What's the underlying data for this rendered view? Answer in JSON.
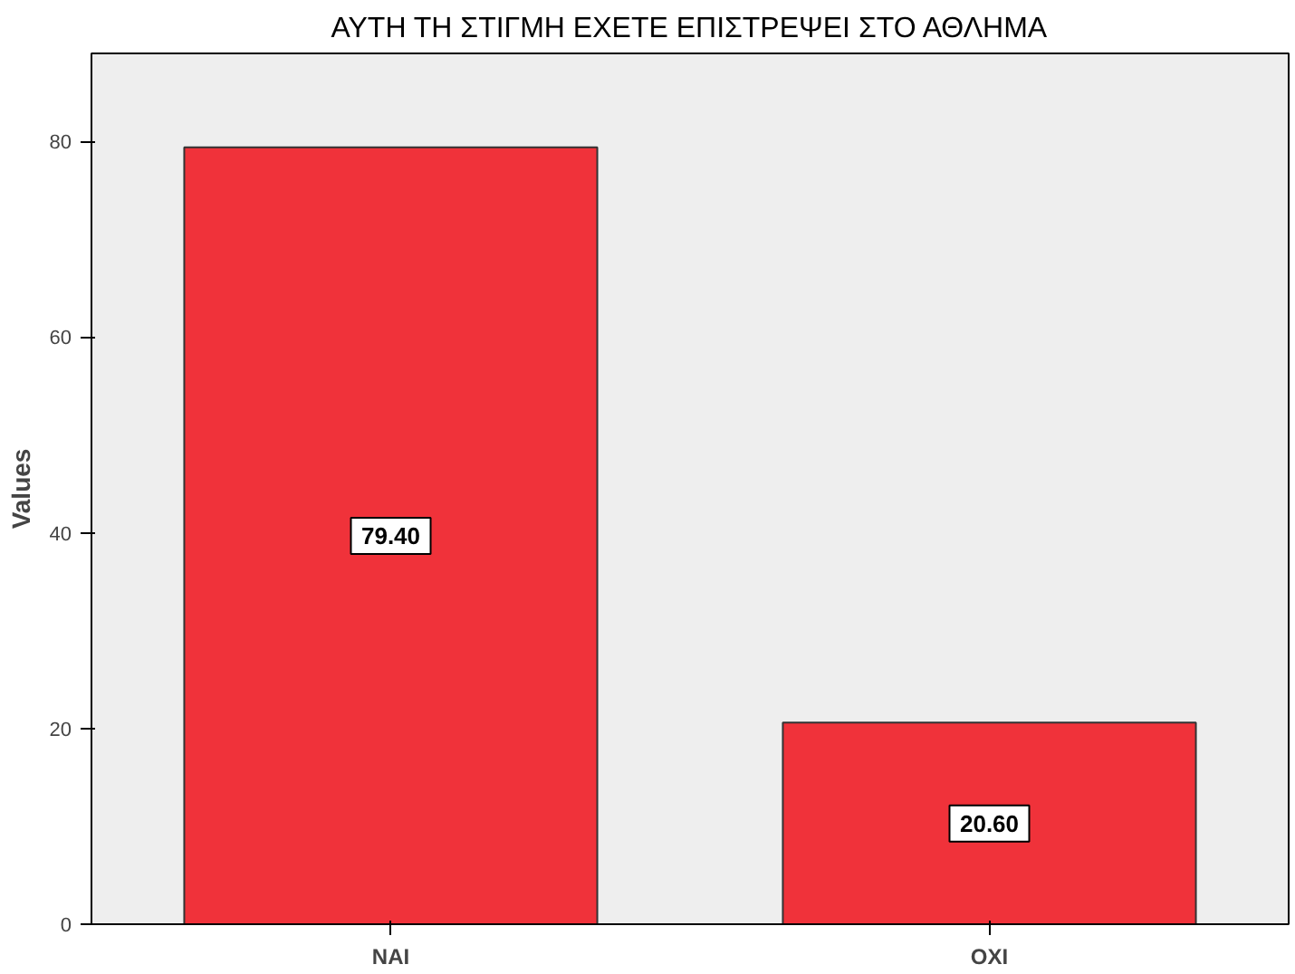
{
  "chart_data": {
    "type": "bar",
    "title": "ΑΥΤΗ ΤΗ ΣΤΙΓΜΗ ΕΧΕΤΕ ΕΠΙΣΤΡΕΨΕΙ ΣΤΟ ΑΘΛΗΜΑ",
    "ylabel": "Values",
    "categories": [
      "ΝΑΙ",
      "ΟΧΙ"
    ],
    "values": [
      79.4,
      20.6
    ],
    "value_labels": [
      "79.40",
      "20.60"
    ],
    "color": "#f0323a",
    "ylim": [
      0,
      89
    ],
    "yticks": [
      0,
      20,
      40,
      60,
      80
    ],
    "grid": false
  }
}
